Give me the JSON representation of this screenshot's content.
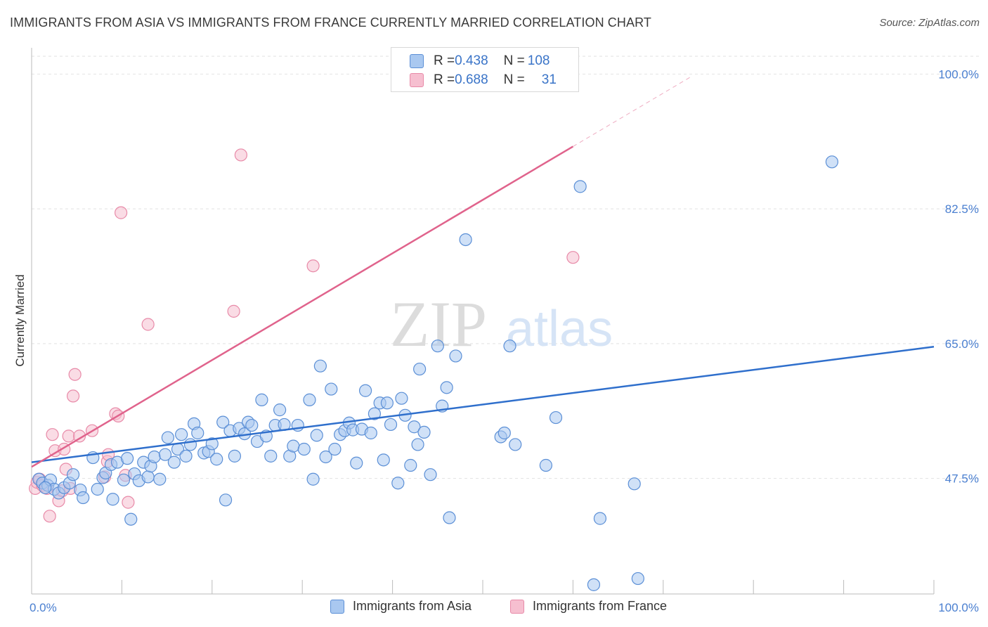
{
  "title": "IMMIGRANTS FROM ASIA VS IMMIGRANTS FROM FRANCE CURRENTLY MARRIED CORRELATION CHART",
  "source": "Source: ZipAtlas.com",
  "watermark": {
    "zip": "ZIP",
    "atlas": "atlas"
  },
  "legend": {
    "asia": {
      "r_label": "R = ",
      "r_value": "0.438",
      "n_label": "N = ",
      "n_value": "108"
    },
    "france": {
      "r_label": "R = ",
      "r_value": "0.688",
      "n_label": "N = ",
      "n_value": "31"
    }
  },
  "colors": {
    "asia_fill": "#a9c8f0",
    "asia_stroke": "#5b8fd6",
    "asia_line": "#2f6fcc",
    "france_fill": "#f6bfd0",
    "france_stroke": "#e88aa8",
    "france_line": "#e0638c",
    "tick_text": "#4a7fd0",
    "grid": "#e2e2e2"
  },
  "chart_data": {
    "type": "scatter",
    "title": "IMMIGRANTS FROM ASIA VS IMMIGRANTS FROM FRANCE CURRENTLY MARRIED CORRELATION CHART",
    "xlabel": "",
    "ylabel": "Currently Married",
    "xlim": [
      0,
      100
    ],
    "ylim": [
      32.5,
      102.5
    ],
    "x_tick_labels": [
      "0.0%",
      "100.0%"
    ],
    "y_ticks": [
      {
        "value": 100.0,
        "label": "100.0%"
      },
      {
        "value": 82.5,
        "label": "82.5%"
      },
      {
        "value": 65.0,
        "label": "65.0%"
      },
      {
        "value": 47.5,
        "label": "47.5%"
      }
    ],
    "grid": true,
    "legend_position": "top-center",
    "series": [
      {
        "name": "Immigrants from Asia",
        "r": 0.438,
        "n": 108,
        "trend": {
          "x": [
            0,
            100
          ],
          "y": [
            49.6,
            64.6
          ]
        },
        "points": [
          [
            0.8,
            47.4
          ],
          [
            1.2,
            46.9
          ],
          [
            1.8,
            46.6
          ],
          [
            2.1,
            47.3
          ],
          [
            2.5,
            46.1
          ],
          [
            3.0,
            45.6
          ],
          [
            3.6,
            46.3
          ],
          [
            4.2,
            46.9
          ],
          [
            4.6,
            48.0
          ],
          [
            5.4,
            46.0
          ],
          [
            5.7,
            45.0
          ],
          [
            6.8,
            50.2
          ],
          [
            7.3,
            46.1
          ],
          [
            7.9,
            47.6
          ],
          [
            8.2,
            48.2
          ],
          [
            8.8,
            49.3
          ],
          [
            9.5,
            49.6
          ],
          [
            10.2,
            47.3
          ],
          [
            10.6,
            50.1
          ],
          [
            11.0,
            42.2
          ],
          [
            11.4,
            48.1
          ],
          [
            11.9,
            47.2
          ],
          [
            12.4,
            49.6
          ],
          [
            12.9,
            47.7
          ],
          [
            13.2,
            49.1
          ],
          [
            13.6,
            50.3
          ],
          [
            14.2,
            47.4
          ],
          [
            14.8,
            50.6
          ],
          [
            15.1,
            52.8
          ],
          [
            15.8,
            49.6
          ],
          [
            16.2,
            51.3
          ],
          [
            16.6,
            53.2
          ],
          [
            17.1,
            50.4
          ],
          [
            17.6,
            51.9
          ],
          [
            18.0,
            54.6
          ],
          [
            18.4,
            53.4
          ],
          [
            19.1,
            50.8
          ],
          [
            19.6,
            51.0
          ],
          [
            20.0,
            52.0
          ],
          [
            20.5,
            50.0
          ],
          [
            21.2,
            54.8
          ],
          [
            21.5,
            44.7
          ],
          [
            22.0,
            53.7
          ],
          [
            22.5,
            50.4
          ],
          [
            23.0,
            54.0
          ],
          [
            23.6,
            53.3
          ],
          [
            24.0,
            54.8
          ],
          [
            24.4,
            54.4
          ],
          [
            25.0,
            52.3
          ],
          [
            25.5,
            57.7
          ],
          [
            26.0,
            53.0
          ],
          [
            26.5,
            50.4
          ],
          [
            27.0,
            54.4
          ],
          [
            27.5,
            56.4
          ],
          [
            28.0,
            54.5
          ],
          [
            28.6,
            50.4
          ],
          [
            29.0,
            51.7
          ],
          [
            29.5,
            54.4
          ],
          [
            30.2,
            51.3
          ],
          [
            30.8,
            57.7
          ],
          [
            31.2,
            47.4
          ],
          [
            31.6,
            53.1
          ],
          [
            32.0,
            62.1
          ],
          [
            32.6,
            50.3
          ],
          [
            33.2,
            59.1
          ],
          [
            33.6,
            51.3
          ],
          [
            34.2,
            53.2
          ],
          [
            34.7,
            53.7
          ],
          [
            35.2,
            54.7
          ],
          [
            35.6,
            53.8
          ],
          [
            36.0,
            49.5
          ],
          [
            36.6,
            53.9
          ],
          [
            37.0,
            58.9
          ],
          [
            37.6,
            53.4
          ],
          [
            38.0,
            55.9
          ],
          [
            38.6,
            57.3
          ],
          [
            39.0,
            49.9
          ],
          [
            39.4,
            57.3
          ],
          [
            39.8,
            54.5
          ],
          [
            40.6,
            46.9
          ],
          [
            41.0,
            57.9
          ],
          [
            41.4,
            55.7
          ],
          [
            42.0,
            49.2
          ],
          [
            42.4,
            54.2
          ],
          [
            42.8,
            51.9
          ],
          [
            43.0,
            61.7
          ],
          [
            43.5,
            53.5
          ],
          [
            44.2,
            48.0
          ],
          [
            45.0,
            64.7
          ],
          [
            45.5,
            56.9
          ],
          [
            46.0,
            59.3
          ],
          [
            46.3,
            42.4
          ],
          [
            47.0,
            63.4
          ],
          [
            48.1,
            78.5
          ],
          [
            52.0,
            52.9
          ],
          [
            52.4,
            53.4
          ],
          [
            53.0,
            64.7
          ],
          [
            53.6,
            51.9
          ],
          [
            57.0,
            49.2
          ],
          [
            58.1,
            55.4
          ],
          [
            62.3,
            33.7
          ],
          [
            63.0,
            42.3
          ],
          [
            60.8,
            85.4
          ],
          [
            66.8,
            46.8
          ],
          [
            67.2,
            34.5
          ],
          [
            88.7,
            88.6
          ],
          [
            1.5,
            46.3
          ],
          [
            9.0,
            44.8
          ]
        ]
      },
      {
        "name": "Immigrants from France",
        "r": 0.688,
        "n": 31,
        "trend": {
          "x": [
            0,
            60
          ],
          "y": [
            49.0,
            90.6
          ]
        },
        "trend_dashed": {
          "x": [
            60,
            73
          ],
          "y": [
            90.6,
            99.6
          ]
        },
        "points": [
          [
            0.4,
            46.2
          ],
          [
            0.6,
            47.0
          ],
          [
            0.9,
            47.4
          ],
          [
            1.2,
            46.6
          ],
          [
            1.7,
            46.2
          ],
          [
            2.0,
            42.6
          ],
          [
            2.3,
            53.2
          ],
          [
            2.6,
            51.1
          ],
          [
            3.0,
            44.6
          ],
          [
            3.4,
            45.9
          ],
          [
            3.6,
            51.3
          ],
          [
            3.8,
            48.7
          ],
          [
            4.1,
            53.0
          ],
          [
            4.3,
            46.2
          ],
          [
            4.6,
            58.2
          ],
          [
            4.8,
            61.0
          ],
          [
            5.3,
            53.0
          ],
          [
            6.7,
            53.7
          ],
          [
            8.1,
            47.7
          ],
          [
            8.4,
            49.7
          ],
          [
            8.5,
            50.6
          ],
          [
            9.3,
            55.9
          ],
          [
            9.6,
            55.6
          ],
          [
            10.4,
            47.9
          ],
          [
            10.7,
            44.4
          ],
          [
            12.9,
            67.5
          ],
          [
            9.9,
            82.0
          ],
          [
            23.2,
            89.5
          ],
          [
            22.4,
            69.2
          ],
          [
            31.2,
            75.1
          ],
          [
            60.0,
            76.2
          ]
        ]
      }
    ]
  },
  "bottom_legend": {
    "asia": "Immigrants from Asia",
    "france": "Immigrants from France"
  }
}
